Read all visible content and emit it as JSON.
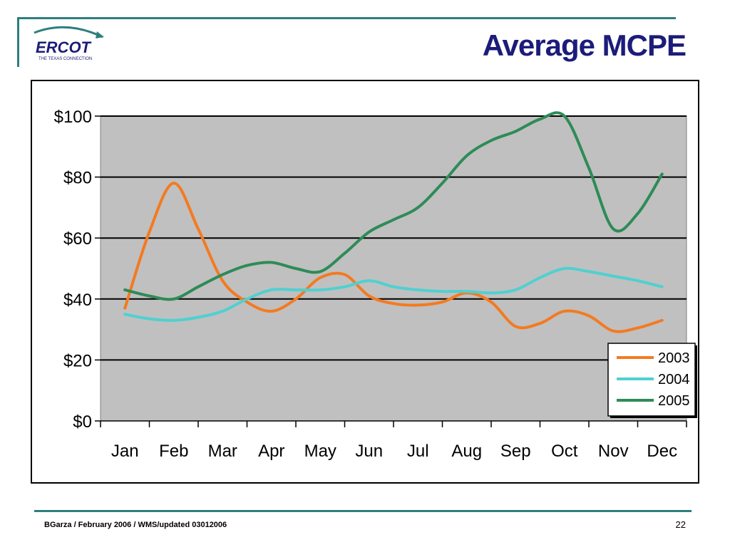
{
  "slide": {
    "title": "Average MCPE",
    "footer": "BGarza / February 2006 / WMS/updated 03012006",
    "page_number": "22",
    "logo": {
      "name": "ERCOT",
      "tagline": "THE TEXAS CONNECTION"
    }
  },
  "colors": {
    "rule": "#2e7e7e",
    "title": "#1c1c7a",
    "plot_bg": "#c0c0c0",
    "s2003": "#f47a20",
    "s2004": "#4fd0d0",
    "s2005": "#2e8b57"
  },
  "chart_data": {
    "type": "line",
    "title": "",
    "xlabel": "",
    "ylabel": "",
    "categories": [
      "Jan",
      "Feb",
      "Mar",
      "Apr",
      "May",
      "Jun",
      "Jul",
      "Aug",
      "Sep",
      "Oct",
      "Nov",
      "Dec"
    ],
    "ylim": [
      0,
      100
    ],
    "yticks": [
      0,
      20,
      40,
      60,
      80,
      100
    ],
    "ytick_labels": [
      "$0",
      "$20",
      "$40",
      "$60",
      "$80",
      "$100"
    ],
    "grid": "horizontal",
    "legend_position": "bottom-right",
    "series": [
      {
        "name": "2003",
        "color": "#f47a20",
        "points": [
          [
            0,
            37
          ],
          [
            0.5,
            62
          ],
          [
            1.0,
            78
          ],
          [
            1.5,
            63
          ],
          [
            2.0,
            46
          ],
          [
            2.5,
            39
          ],
          [
            3.0,
            36
          ],
          [
            3.5,
            40
          ],
          [
            4.0,
            47
          ],
          [
            4.5,
            48
          ],
          [
            5.0,
            41
          ],
          [
            5.5,
            38.5
          ],
          [
            6.0,
            38
          ],
          [
            6.5,
            39
          ],
          [
            7.0,
            42
          ],
          [
            7.5,
            39
          ],
          [
            8.0,
            31
          ],
          [
            8.5,
            32
          ],
          [
            9.0,
            36
          ],
          [
            9.5,
            34.5
          ],
          [
            10.0,
            29.5
          ],
          [
            10.5,
            30.5
          ],
          [
            11.0,
            33
          ]
        ]
      },
      {
        "name": "2004",
        "color": "#4fd0d0",
        "points": [
          [
            0,
            35
          ],
          [
            0.5,
            33.5
          ],
          [
            1.0,
            33
          ],
          [
            1.5,
            34
          ],
          [
            2.0,
            36
          ],
          [
            2.5,
            40
          ],
          [
            3.0,
            43
          ],
          [
            3.5,
            43
          ],
          [
            4.0,
            43
          ],
          [
            4.5,
            44
          ],
          [
            5.0,
            46
          ],
          [
            5.5,
            44
          ],
          [
            6.0,
            43
          ],
          [
            6.5,
            42.5
          ],
          [
            7.0,
            42.5
          ],
          [
            7.5,
            42
          ],
          [
            8.0,
            43
          ],
          [
            8.5,
            47
          ],
          [
            9.0,
            50
          ],
          [
            9.5,
            49
          ],
          [
            10.0,
            47.5
          ],
          [
            10.5,
            46
          ],
          [
            11.0,
            44
          ]
        ]
      },
      {
        "name": "2005",
        "color": "#2e8b57",
        "points": [
          [
            0,
            43
          ],
          [
            0.5,
            41
          ],
          [
            1.0,
            40
          ],
          [
            1.5,
            44
          ],
          [
            2.0,
            48
          ],
          [
            2.5,
            51
          ],
          [
            3.0,
            52
          ],
          [
            3.5,
            50
          ],
          [
            4.0,
            49
          ],
          [
            4.5,
            55
          ],
          [
            5.0,
            62
          ],
          [
            5.5,
            66
          ],
          [
            6.0,
            70
          ],
          [
            6.5,
            78
          ],
          [
            7.0,
            87
          ],
          [
            7.5,
            92
          ],
          [
            8.0,
            95
          ],
          [
            8.5,
            99
          ],
          [
            9.0,
            100
          ],
          [
            9.5,
            83
          ],
          [
            10.0,
            63
          ],
          [
            10.5,
            68
          ],
          [
            11.0,
            81
          ]
        ]
      }
    ]
  }
}
